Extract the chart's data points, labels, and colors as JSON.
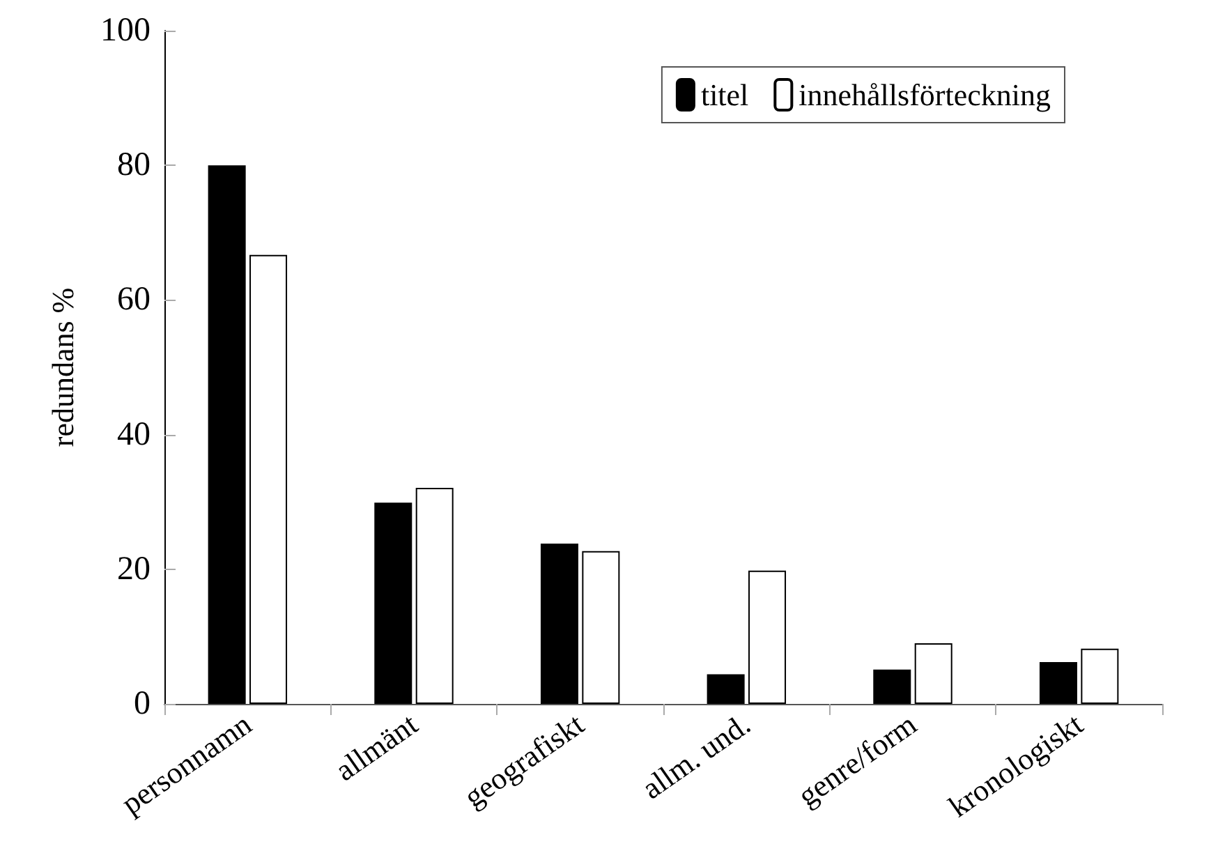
{
  "chart_data": {
    "type": "bar",
    "ylabel": "redundans %",
    "categories": [
      "personnamn",
      "allmänt",
      "geografiskt",
      "allm. und.",
      "genre/form",
      "kronologiskt"
    ],
    "series": [
      {
        "name": "titel",
        "color": "#000000",
        "values": [
          80,
          29.9,
          23.8,
          4.4,
          5.1,
          6.2
        ]
      },
      {
        "name": "innehållsförteckning",
        "color": "#ffffff",
        "values": [
          66.7,
          32.1,
          22.7,
          19.8,
          9.0,
          8.2
        ]
      }
    ],
    "ylim": [
      0,
      100
    ],
    "yticks": [
      0,
      20,
      40,
      60,
      80,
      100
    ],
    "grid": false,
    "legend": "top right"
  }
}
